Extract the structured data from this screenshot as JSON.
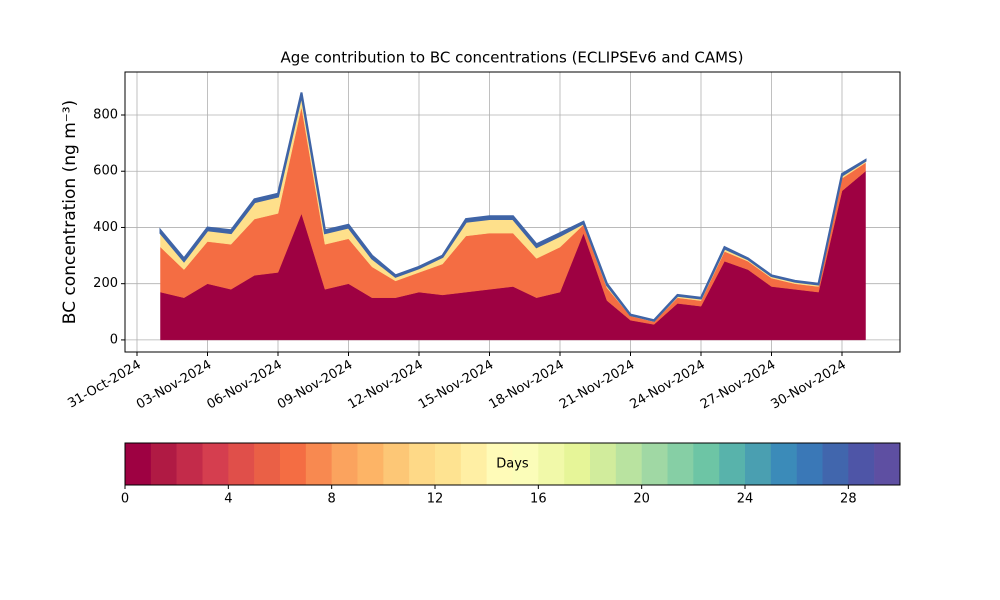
{
  "chart_data": {
    "type": "stackedarea",
    "title": "Age contribution to BC concentrations (ECLIPSEv6 and CAMS)",
    "y_label": "BC concentration (ng m⁻³)",
    "x": [
      "01-Nov-2024",
      "02-Nov-2024",
      "03-Nov-2024",
      "04-Nov-2024",
      "05-Nov-2024",
      "06-Nov-2024",
      "07-Nov-2024",
      "08-Nov-2024",
      "09-Nov-2024",
      "10-Nov-2024",
      "11-Nov-2024",
      "12-Nov-2024",
      "13-Nov-2024",
      "14-Nov-2024",
      "15-Nov-2024",
      "16-Nov-2024",
      "17-Nov-2024",
      "18-Nov-2024",
      "19-Nov-2024",
      "20-Nov-2024",
      "21-Nov-2024",
      "22-Nov-2024",
      "23-Nov-2024",
      "24-Nov-2024",
      "25-Nov-2024",
      "26-Nov-2024",
      "27-Nov-2024",
      "28-Nov-2024",
      "29-Nov-2024",
      "30-Nov-2024",
      "01-Dec-2024"
    ],
    "series": [
      {
        "color": "#9e0142",
        "values": [
          170,
          150,
          200,
          180,
          230,
          240,
          450,
          180,
          200,
          150,
          150,
          170,
          160,
          170,
          180,
          190,
          150,
          170,
          380,
          140,
          70,
          55,
          130,
          120,
          280,
          250,
          190,
          180,
          170,
          530,
          600
        ]
      },
      {
        "color": "#f46d43",
        "values": [
          160,
          100,
          150,
          160,
          200,
          210,
          380,
          160,
          160,
          110,
          60,
          70,
          110,
          200,
          200,
          190,
          140,
          160,
          30,
          45,
          15,
          10,
          20,
          20,
          35,
          30,
          30,
          20,
          20,
          45,
          30
        ]
      },
      {
        "color": "#fee08b",
        "values": [
          50,
          30,
          40,
          40,
          60,
          60,
          40,
          40,
          40,
          30,
          15,
          15,
          25,
          50,
          50,
          50,
          40,
          40,
          5,
          10,
          3,
          3,
          7,
          7,
          10,
          7,
          7,
          7,
          7,
          10,
          7
        ]
      },
      {
        "color": "#3f64a6",
        "values": [
          10,
          10,
          10,
          10,
          10,
          10,
          10,
          10,
          10,
          10,
          5,
          5,
          5,
          10,
          10,
          10,
          10,
          10,
          5,
          5,
          2,
          2,
          3,
          3,
          5,
          3,
          3,
          3,
          3,
          5,
          3
        ]
      }
    ],
    "xlim": [
      "31-Oct-2024",
      "02-Dec-2024"
    ],
    "xticks": [
      "31-Oct-2024",
      "03-Nov-2024",
      "06-Nov-2024",
      "09-Nov-2024",
      "12-Nov-2024",
      "15-Nov-2024",
      "18-Nov-2024",
      "21-Nov-2024",
      "24-Nov-2024",
      "27-Nov-2024",
      "30-Nov-2024"
    ],
    "ylim": [
      -43,
      953
    ],
    "yticks": [
      0,
      200,
      400,
      600,
      800
    ],
    "grid": true,
    "colorbar": {
      "label": "Days",
      "lim": [
        0,
        30
      ],
      "ticks": [
        0,
        4,
        8,
        12,
        16,
        20,
        24,
        28
      ],
      "colors": [
        "#9e0142",
        "#b01a44",
        "#c32b4a",
        "#d53e4f",
        "#e04f4a",
        "#ea6046",
        "#f46d43",
        "#f88950",
        "#fba35e",
        "#fdb466",
        "#fdc776",
        "#fed987",
        "#fee391",
        "#ffefa4",
        "#fffbb8",
        "#fbfdb9",
        "#f1f9a9",
        "#e6f598",
        "#d1ec9c",
        "#b9e3a0",
        "#a0d8a4",
        "#86cfa5",
        "#6dc5a5",
        "#58b3ab",
        "#4a9fb1",
        "#3b8bb9",
        "#3a78b7",
        "#4166ad",
        "#4e55a7",
        "#5e4fa2"
      ]
    }
  }
}
